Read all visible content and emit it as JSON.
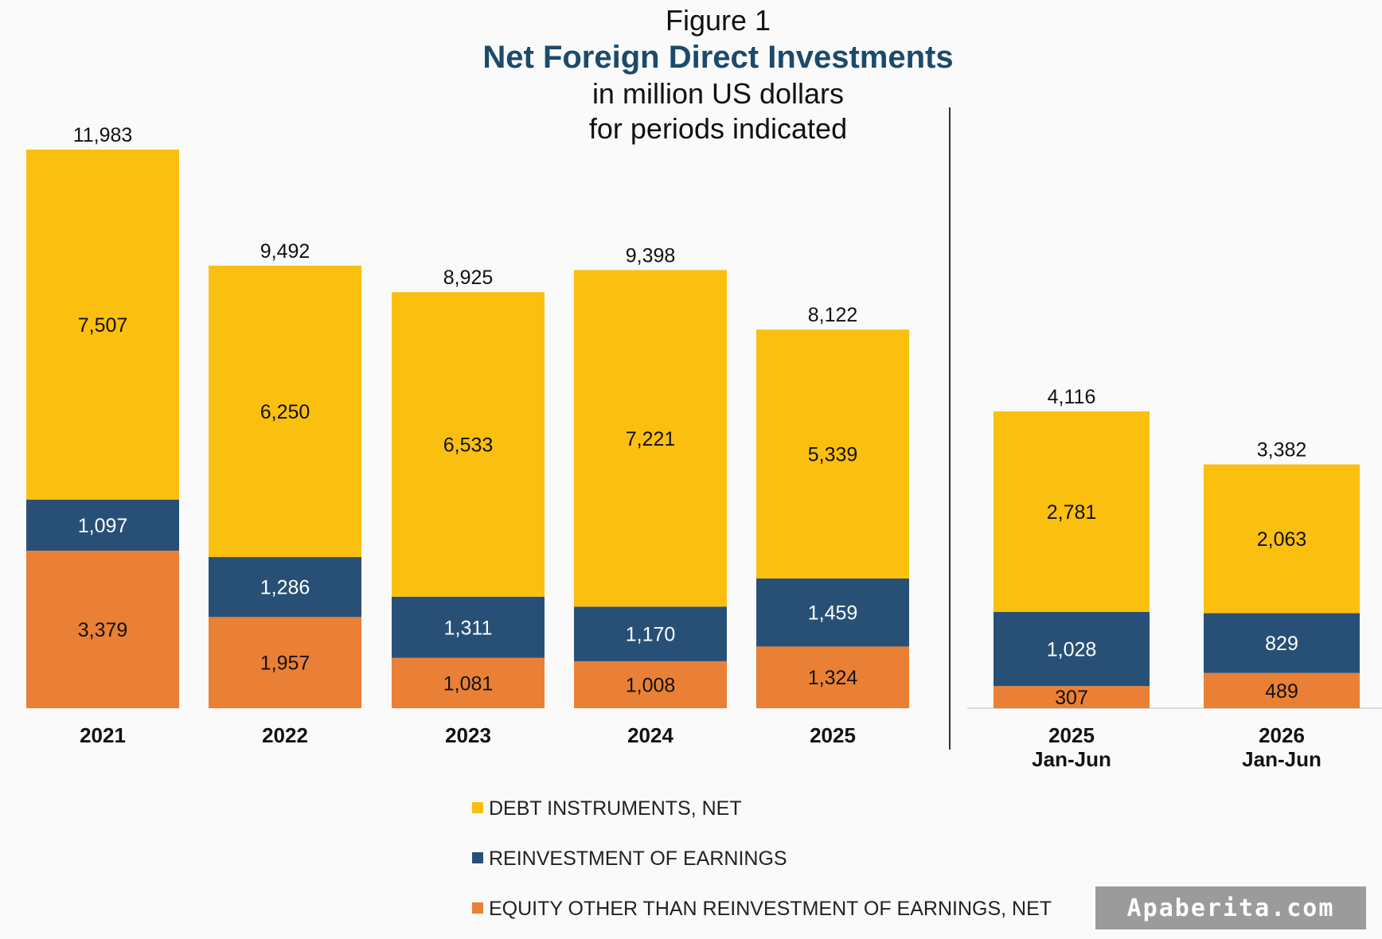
{
  "chart_data": {
    "type": "bar",
    "stacked": true,
    "title_prefix": "Figure 1",
    "title": "Net Foreign Direct Investments",
    "subtitle_lines": [
      "in million US dollars",
      "for periods indicated"
    ],
    "groups": [
      {
        "categories": [
          [
            "2021"
          ],
          [
            "2022"
          ],
          [
            "2023"
          ],
          [
            "2024"
          ],
          [
            "2025"
          ]
        ],
        "totals": [
          "11,983",
          "9,492",
          "8,925",
          "9,398",
          "8,122"
        ],
        "ylim": [
          0,
          11983
        ]
      },
      {
        "categories": [
          [
            "2025",
            "Jan-Jun"
          ],
          [
            "2026",
            "Jan-Jun"
          ]
        ],
        "totals": [
          "4,116",
          "3,382"
        ],
        "ylim": [
          0,
          4116
        ]
      }
    ],
    "series": [
      {
        "name": "EQUITY OTHER THAN REINVESTMENT OF EARNINGS, NET",
        "color": "#ea8035",
        "label_color": "#111111",
        "values": [
          [
            3379,
            1957,
            1081,
            1008,
            1324
          ],
          [
            307,
            489
          ]
        ],
        "labels": [
          [
            "3,379",
            "1,957",
            "1,081",
            "1,008",
            "1,324"
          ],
          [
            "307",
            "489"
          ]
        ]
      },
      {
        "name": "REINVESTMENT OF EARNINGS",
        "color": "#285076",
        "label_color": "#ffffff",
        "values": [
          [
            1097,
            1286,
            1311,
            1170,
            1459
          ],
          [
            1028,
            829
          ]
        ],
        "labels": [
          [
            "1,097",
            "1,286",
            "1,311",
            "1,170",
            "1,459"
          ],
          [
            "1,028",
            "829"
          ]
        ]
      },
      {
        "name": "DEBT INSTRUMENTS, NET",
        "color": "#fbbf0f",
        "label_color": "#111111",
        "values": [
          [
            7507,
            6250,
            6533,
            7221,
            5339
          ],
          [
            2781,
            2063
          ]
        ],
        "labels": [
          [
            "7,507",
            "6,250",
            "6,533",
            "7,221",
            "5,339"
          ],
          [
            "2,781",
            "2,063"
          ]
        ]
      }
    ],
    "legend_order": [
      2,
      1,
      0
    ],
    "legend_position": "bottom-center",
    "grid": false
  },
  "watermark": "Apaberita.com"
}
